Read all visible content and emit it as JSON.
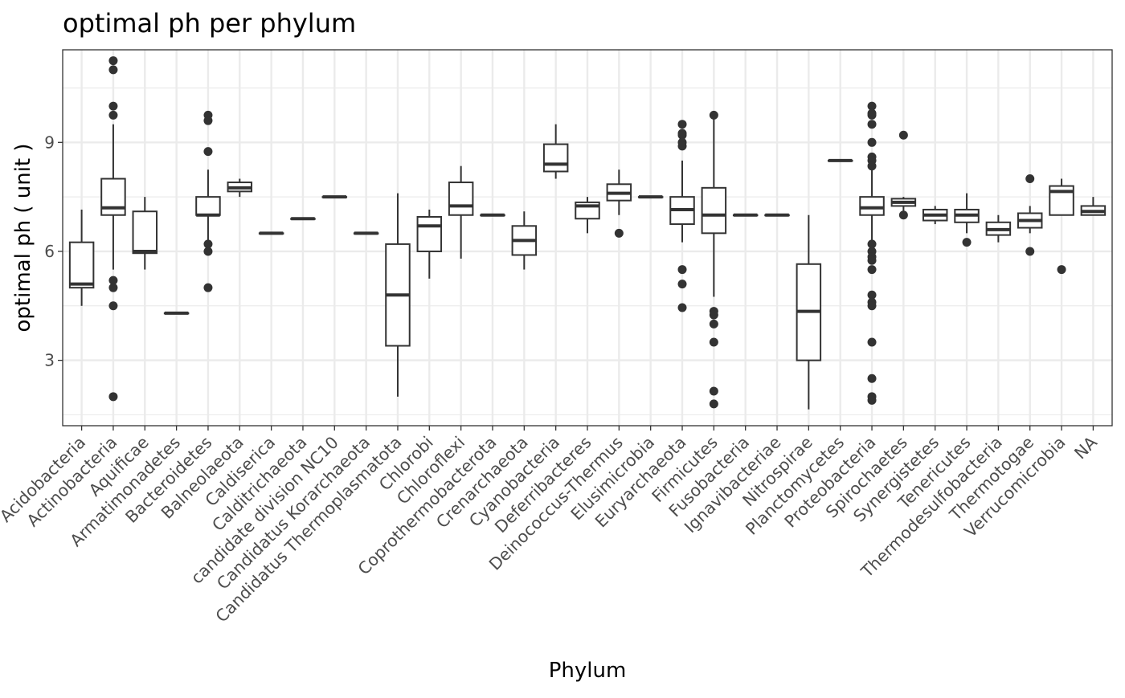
{
  "chart_data": {
    "type": "boxplot",
    "title": "optimal ph per phylum",
    "xlabel": "Phylum",
    "ylabel": "optimal ph ( unit )",
    "ylim": [
      1.2,
      11.55
    ],
    "yticks": [
      3,
      6,
      9
    ],
    "grid": true,
    "legend": "none",
    "colors": {
      "box": "#333333",
      "grid": "#ebebeb",
      "panel_border": "#333333",
      "axis_text": "#4d4d4d",
      "text": "#000000"
    },
    "categories": [
      "Acidobacteria",
      "Actinobacteria",
      "Aquificae",
      "Armatimonadetes",
      "Bacteroidetes",
      "Balneolaeota",
      "Caldiserica",
      "Calditrichaeota",
      "candidate division NC10",
      "Candidatus Korarchaeota",
      "Candidatus Thermoplasmatota",
      "Chlorobi",
      "Chloroflexi",
      "Coprothermobacterota",
      "Crenarchaeota",
      "Cyanobacteria",
      "Deferribacteres",
      "Deinococcus-Thermus",
      "Elusimicrobia",
      "Euryarchaeota",
      "Firmicutes",
      "Fusobacteria",
      "Ignavibacteriae",
      "Nitrospirae",
      "Planctomycetes",
      "Proteobacteria",
      "Spirochaetes",
      "Synergistetes",
      "Tenericutes",
      "Thermodesulfobacteria",
      "Thermotogae",
      "Verrucomicrobia",
      "NA"
    ],
    "boxes": [
      {
        "min": 4.5,
        "q1": 5.0,
        "median": 5.1,
        "q3": 6.25,
        "max": 7.15,
        "outliers": []
      },
      {
        "min": 5.5,
        "q1": 7.0,
        "median": 7.2,
        "q3": 8.0,
        "max": 9.5,
        "outliers": [
          11.25,
          11.0,
          10.0,
          9.75,
          5.2,
          5.0,
          4.5,
          2.0
        ]
      },
      {
        "min": 5.5,
        "q1": 5.95,
        "median": 6.0,
        "q3": 7.1,
        "max": 7.5,
        "outliers": []
      },
      {
        "min": 4.3,
        "q1": 4.3,
        "median": 4.3,
        "q3": 4.3,
        "max": 4.3,
        "outliers": []
      },
      {
        "min": 6.25,
        "q1": 7.0,
        "median": 7.0,
        "q3": 7.5,
        "max": 8.25,
        "outliers": [
          9.75,
          9.6,
          8.75,
          6.2,
          6.0,
          5.0
        ]
      },
      {
        "min": 7.5,
        "q1": 7.65,
        "median": 7.75,
        "q3": 7.9,
        "max": 8.0,
        "outliers": []
      },
      {
        "min": 6.5,
        "q1": 6.5,
        "median": 6.5,
        "q3": 6.5,
        "max": 6.5,
        "outliers": []
      },
      {
        "min": 6.9,
        "q1": 6.9,
        "median": 6.9,
        "q3": 6.9,
        "max": 6.9,
        "outliers": []
      },
      {
        "min": 7.5,
        "q1": 7.5,
        "median": 7.5,
        "q3": 7.5,
        "max": 7.5,
        "outliers": []
      },
      {
        "min": 6.5,
        "q1": 6.5,
        "median": 6.5,
        "q3": 6.5,
        "max": 6.5,
        "outliers": []
      },
      {
        "min": 2.0,
        "q1": 3.4,
        "median": 4.8,
        "q3": 6.2,
        "max": 7.6,
        "outliers": []
      },
      {
        "min": 5.25,
        "q1": 6.0,
        "median": 6.7,
        "q3": 6.95,
        "max": 7.15,
        "outliers": []
      },
      {
        "min": 5.8,
        "q1": 7.0,
        "median": 7.25,
        "q3": 7.9,
        "max": 8.35,
        "outliers": []
      },
      {
        "min": 7.0,
        "q1": 7.0,
        "median": 7.0,
        "q3": 7.0,
        "max": 7.0,
        "outliers": []
      },
      {
        "min": 5.5,
        "q1": 5.9,
        "median": 6.3,
        "q3": 6.7,
        "max": 7.1,
        "outliers": []
      },
      {
        "min": 8.0,
        "q1": 8.2,
        "median": 8.4,
        "q3": 8.95,
        "max": 9.5,
        "outliers": []
      },
      {
        "min": 6.5,
        "q1": 6.9,
        "median": 7.25,
        "q3": 7.35,
        "max": 7.5,
        "outliers": []
      },
      {
        "min": 7.0,
        "q1": 7.4,
        "median": 7.6,
        "q3": 7.85,
        "max": 8.25,
        "outliers": [
          6.5
        ]
      },
      {
        "min": 7.5,
        "q1": 7.5,
        "median": 7.5,
        "q3": 7.5,
        "max": 7.5,
        "outliers": []
      },
      {
        "min": 6.25,
        "q1": 6.75,
        "median": 7.15,
        "q3": 7.5,
        "max": 8.5,
        "outliers": [
          9.5,
          9.25,
          9.2,
          9.0,
          8.9,
          5.5,
          5.1,
          4.45
        ]
      },
      {
        "min": 4.75,
        "q1": 6.5,
        "median": 7.0,
        "q3": 7.75,
        "max": 9.75,
        "outliers": [
          9.75,
          4.35,
          4.25,
          4.0,
          3.5,
          2.15,
          1.8
        ]
      },
      {
        "min": 7.0,
        "q1": 7.0,
        "median": 7.0,
        "q3": 7.0,
        "max": 7.0,
        "outliers": []
      },
      {
        "min": 7.0,
        "q1": 7.0,
        "median": 7.0,
        "q3": 7.0,
        "max": 7.0,
        "outliers": []
      },
      {
        "min": 1.65,
        "q1": 3.0,
        "median": 4.35,
        "q3": 5.65,
        "max": 7.0,
        "outliers": []
      },
      {
        "min": 8.5,
        "q1": 8.5,
        "median": 8.5,
        "q3": 8.5,
        "max": 8.5,
        "outliers": []
      },
      {
        "min": 6.25,
        "q1": 7.0,
        "median": 7.2,
        "q3": 7.5,
        "max": 8.25,
        "outliers": [
          10.0,
          9.8,
          9.75,
          9.5,
          9.0,
          8.6,
          8.5,
          8.35,
          6.2,
          6.0,
          5.85,
          5.75,
          5.5,
          4.8,
          4.6,
          4.5,
          3.5,
          2.5,
          2.0,
          1.9
        ]
      },
      {
        "min": 7.0,
        "q1": 7.25,
        "median": 7.35,
        "q3": 7.45,
        "max": 7.5,
        "outliers": [
          9.2,
          7.0
        ]
      },
      {
        "min": 6.75,
        "q1": 6.85,
        "median": 7.0,
        "q3": 7.15,
        "max": 7.25,
        "outliers": []
      },
      {
        "min": 6.5,
        "q1": 6.8,
        "median": 7.0,
        "q3": 7.15,
        "max": 7.6,
        "outliers": [
          6.25
        ]
      },
      {
        "min": 6.25,
        "q1": 6.45,
        "median": 6.6,
        "q3": 6.8,
        "max": 7.0,
        "outliers": []
      },
      {
        "min": 6.5,
        "q1": 6.65,
        "median": 6.85,
        "q3": 7.05,
        "max": 7.25,
        "outliers": [
          8.0,
          6.0
        ]
      },
      {
        "min": 7.0,
        "q1": 7.0,
        "median": 7.65,
        "q3": 7.8,
        "max": 8.0,
        "outliers": [
          5.5
        ]
      },
      {
        "min": 7.0,
        "q1": 7.0,
        "median": 7.1,
        "q3": 7.25,
        "max": 7.5,
        "outliers": []
      }
    ]
  }
}
